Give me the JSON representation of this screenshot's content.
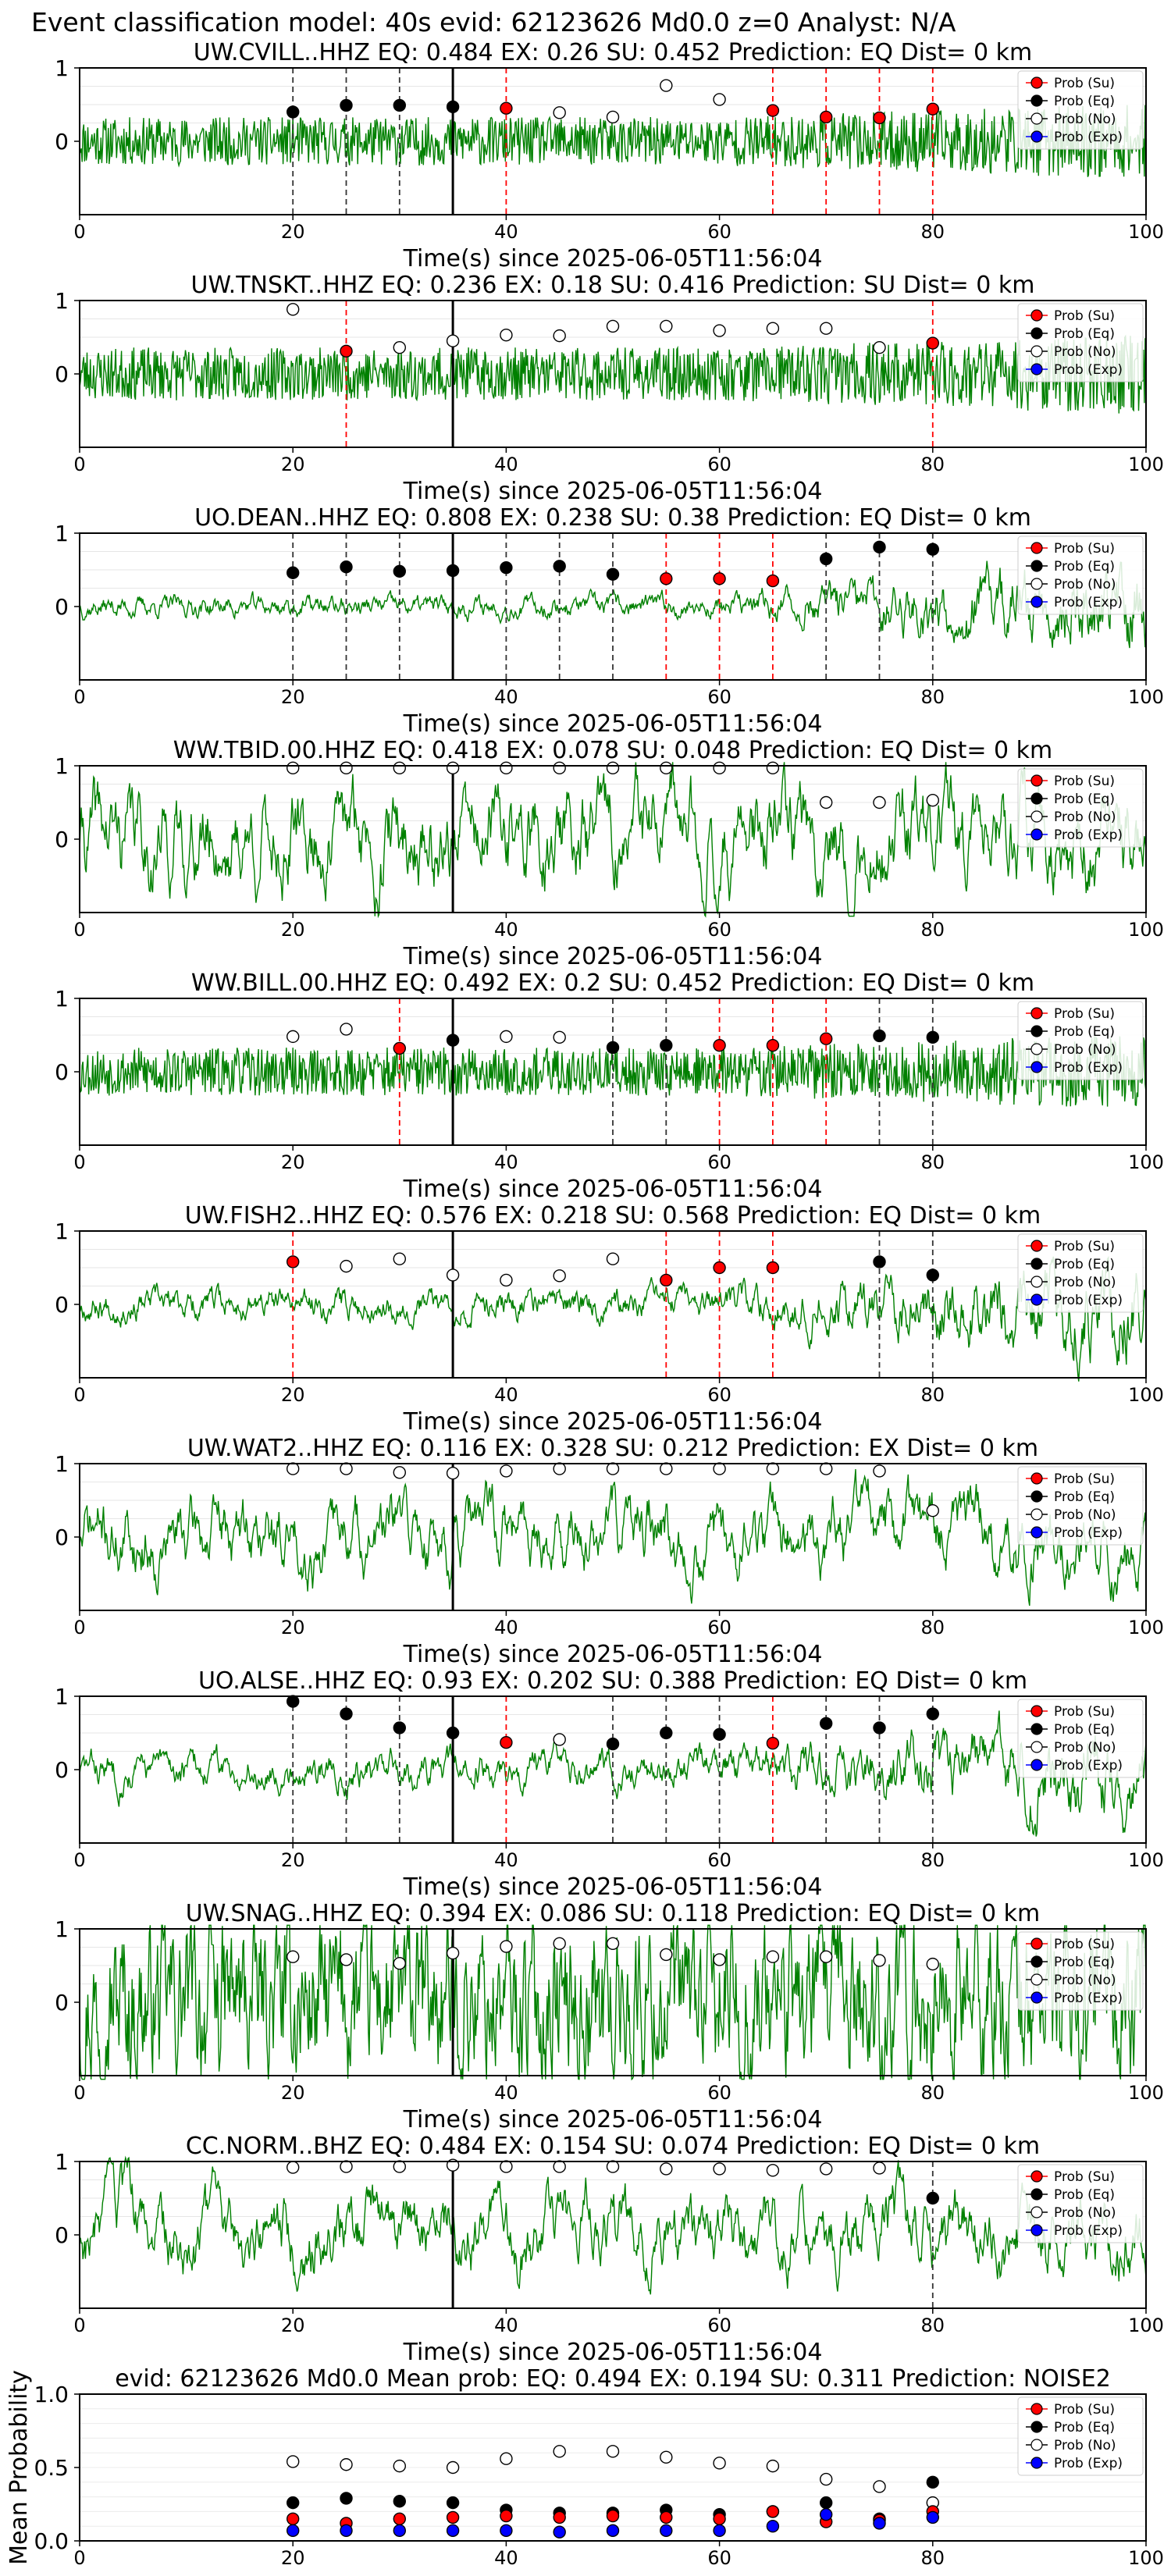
{
  "figure": {
    "suptitle": "Event classification model: 40s evid: 62123626 Md0.0 z=0 Analyst: N/A"
  },
  "legend_labels": [
    "Prob (Su)",
    "Prob (Eq)",
    "Prob (No)",
    "Prob (Exp)"
  ],
  "colors": {
    "su": "#ff0000",
    "eq": "#000000",
    "no": "#ffffff",
    "exp": "#0000ff",
    "waveform": "#008000"
  },
  "chart_data": [
    {
      "type": "line",
      "title": "UW.CVILL..HHZ   EQ: 0.484  EX: 0.26  SU: 0.452   Prediction: EQ    Dist= 0 km",
      "xlabel": "Time(s) since 2025-06-05T11:56:04",
      "xlim": [
        0,
        100
      ],
      "ylim": [
        -1,
        1
      ],
      "xticks": [
        0,
        20,
        40,
        60,
        80,
        100
      ],
      "yticks": [
        1,
        0
      ],
      "pick_time": 35,
      "amp": 0.55,
      "smooth": 0.05,
      "seed": 11,
      "grow": 1.5,
      "points": [
        {
          "t": 20,
          "p": 0.4,
          "c": "eq"
        },
        {
          "t": 25,
          "p": 0.49,
          "c": "eq"
        },
        {
          "t": 30,
          "p": 0.49,
          "c": "eq"
        },
        {
          "t": 35,
          "p": 0.47,
          "c": "eq"
        },
        {
          "t": 40,
          "p": 0.45,
          "c": "su"
        },
        {
          "t": 45,
          "p": 0.39,
          "c": "no"
        },
        {
          "t": 50,
          "p": 0.33,
          "c": "no"
        },
        {
          "t": 55,
          "p": 0.76,
          "c": "no"
        },
        {
          "t": 60,
          "p": 0.57,
          "c": "no"
        },
        {
          "t": 65,
          "p": 0.42,
          "c": "su"
        },
        {
          "t": 70,
          "p": 0.33,
          "c": "su"
        },
        {
          "t": 75,
          "p": 0.32,
          "c": "su"
        },
        {
          "t": 80,
          "p": 0.44,
          "c": "su"
        }
      ]
    },
    {
      "type": "line",
      "title": "UW.TNSKT..HHZ   EQ: 0.236  EX: 0.18  SU: 0.416   Prediction: SU    Dist= 0 km",
      "xlabel": "Time(s) since 2025-06-05T11:56:04",
      "xlim": [
        0,
        100
      ],
      "ylim": [
        -1,
        1
      ],
      "xticks": [
        0,
        20,
        40,
        60,
        80,
        100
      ],
      "yticks": [
        1,
        0
      ],
      "pick_time": 35,
      "amp": 0.6,
      "smooth": 0.05,
      "seed": 23,
      "grow": 1.5,
      "points": [
        {
          "t": 20,
          "p": 0.88,
          "c": "no"
        },
        {
          "t": 25,
          "p": 0.31,
          "c": "su"
        },
        {
          "t": 30,
          "p": 0.36,
          "c": "no"
        },
        {
          "t": 35,
          "p": 0.45,
          "c": "no"
        },
        {
          "t": 40,
          "p": 0.53,
          "c": "no"
        },
        {
          "t": 45,
          "p": 0.52,
          "c": "no"
        },
        {
          "t": 50,
          "p": 0.65,
          "c": "no"
        },
        {
          "t": 55,
          "p": 0.65,
          "c": "no"
        },
        {
          "t": 60,
          "p": 0.59,
          "c": "no"
        },
        {
          "t": 65,
          "p": 0.62,
          "c": "no"
        },
        {
          "t": 70,
          "p": 0.62,
          "c": "no"
        },
        {
          "t": 75,
          "p": 0.36,
          "c": "no"
        },
        {
          "t": 80,
          "p": 0.42,
          "c": "su"
        }
      ]
    },
    {
      "type": "line",
      "title": "UO.DEAN..HHZ   EQ: 0.808  EX: 0.238  SU: 0.38   Prediction: EQ    Dist= 0 km",
      "xlabel": "Time(s) since 2025-06-05T11:56:04",
      "xlim": [
        0,
        100
      ],
      "ylim": [
        -1,
        1
      ],
      "xticks": [
        0,
        20,
        40,
        60,
        80,
        100
      ],
      "yticks": [
        1,
        0
      ],
      "pick_time": 35,
      "amp": 0.12,
      "smooth": 0.2,
      "seed": 37,
      "grow": 4,
      "points": [
        {
          "t": 20,
          "p": 0.46,
          "c": "eq"
        },
        {
          "t": 25,
          "p": 0.54,
          "c": "eq"
        },
        {
          "t": 30,
          "p": 0.48,
          "c": "eq"
        },
        {
          "t": 35,
          "p": 0.49,
          "c": "eq"
        },
        {
          "t": 40,
          "p": 0.53,
          "c": "eq"
        },
        {
          "t": 45,
          "p": 0.55,
          "c": "eq"
        },
        {
          "t": 50,
          "p": 0.44,
          "c": "eq"
        },
        {
          "t": 55,
          "p": 0.38,
          "c": "su"
        },
        {
          "t": 60,
          "p": 0.38,
          "c": "su"
        },
        {
          "t": 65,
          "p": 0.35,
          "c": "su"
        },
        {
          "t": 70,
          "p": 0.65,
          "c": "eq"
        },
        {
          "t": 75,
          "p": 0.81,
          "c": "eq"
        },
        {
          "t": 80,
          "p": 0.78,
          "c": "eq"
        }
      ]
    },
    {
      "type": "line",
      "title": "WW.TBID.00.HHZ   EQ: 0.418  EX: 0.078  SU: 0.048   Prediction: EQ    Dist= 0 km",
      "xlabel": "Time(s) since 2025-06-05T11:56:04",
      "xlim": [
        0,
        100
      ],
      "ylim": [
        -1,
        1
      ],
      "xticks": [
        0,
        20,
        40,
        60,
        80,
        100
      ],
      "yticks": [
        1,
        0
      ],
      "pick_time": 35,
      "amp": 0.8,
      "smooth": 0.12,
      "seed": 41,
      "grow": 1,
      "points": [
        {
          "t": 20,
          "p": 0.97,
          "c": "no"
        },
        {
          "t": 25,
          "p": 0.97,
          "c": "no"
        },
        {
          "t": 30,
          "p": 0.97,
          "c": "no"
        },
        {
          "t": 35,
          "p": 0.97,
          "c": "no"
        },
        {
          "t": 40,
          "p": 0.97,
          "c": "no"
        },
        {
          "t": 45,
          "p": 0.97,
          "c": "no"
        },
        {
          "t": 50,
          "p": 0.97,
          "c": "no"
        },
        {
          "t": 55,
          "p": 0.97,
          "c": "no"
        },
        {
          "t": 60,
          "p": 0.97,
          "c": "no"
        },
        {
          "t": 65,
          "p": 0.97,
          "c": "no"
        },
        {
          "t": 70,
          "p": 0.5,
          "c": "no"
        },
        {
          "t": 75,
          "p": 0.5,
          "c": "no"
        },
        {
          "t": 80,
          "p": 0.53,
          "c": "no"
        }
      ]
    },
    {
      "type": "line",
      "title": "WW.BILL.00.HHZ   EQ: 0.492  EX: 0.2  SU: 0.452   Prediction: EQ    Dist= 0 km",
      "xlabel": "Time(s) since 2025-06-05T11:56:04",
      "xlim": [
        0,
        100
      ],
      "ylim": [
        -1,
        1
      ],
      "xticks": [
        0,
        20,
        40,
        60,
        80,
        100
      ],
      "yticks": [
        1,
        0
      ],
      "pick_time": 35,
      "amp": 0.55,
      "smooth": 0.06,
      "seed": 53,
      "grow": 1.5,
      "points": [
        {
          "t": 20,
          "p": 0.48,
          "c": "no"
        },
        {
          "t": 25,
          "p": 0.58,
          "c": "no"
        },
        {
          "t": 30,
          "p": 0.32,
          "c": "su"
        },
        {
          "t": 35,
          "p": 0.43,
          "c": "eq"
        },
        {
          "t": 40,
          "p": 0.48,
          "c": "no"
        },
        {
          "t": 45,
          "p": 0.47,
          "c": "no"
        },
        {
          "t": 50,
          "p": 0.33,
          "c": "eq"
        },
        {
          "t": 55,
          "p": 0.36,
          "c": "eq"
        },
        {
          "t": 60,
          "p": 0.36,
          "c": "su"
        },
        {
          "t": 65,
          "p": 0.36,
          "c": "su"
        },
        {
          "t": 70,
          "p": 0.45,
          "c": "su"
        },
        {
          "t": 75,
          "p": 0.49,
          "c": "eq"
        },
        {
          "t": 80,
          "p": 0.47,
          "c": "eq"
        }
      ]
    },
    {
      "type": "line",
      "title": "UW.FISH2..HHZ   EQ: 0.576  EX: 0.218  SU: 0.568   Prediction: EQ    Dist= 0 km",
      "xlabel": "Time(s) since 2025-06-05T11:56:04",
      "xlim": [
        0,
        100
      ],
      "ylim": [
        -1,
        1
      ],
      "xticks": [
        0,
        20,
        40,
        60,
        80,
        100
      ],
      "yticks": [
        1,
        0
      ],
      "pick_time": 35,
      "amp": 0.18,
      "smooth": 0.18,
      "seed": 67,
      "grow": 3,
      "points": [
        {
          "t": 20,
          "p": 0.58,
          "c": "su"
        },
        {
          "t": 25,
          "p": 0.52,
          "c": "no"
        },
        {
          "t": 30,
          "p": 0.62,
          "c": "no"
        },
        {
          "t": 35,
          "p": 0.4,
          "c": "no"
        },
        {
          "t": 40,
          "p": 0.33,
          "c": "no"
        },
        {
          "t": 45,
          "p": 0.39,
          "c": "no"
        },
        {
          "t": 50,
          "p": 0.62,
          "c": "no"
        },
        {
          "t": 55,
          "p": 0.33,
          "c": "su"
        },
        {
          "t": 60,
          "p": 0.5,
          "c": "su"
        },
        {
          "t": 65,
          "p": 0.5,
          "c": "su"
        },
        {
          "t": 75,
          "p": 0.58,
          "c": "eq"
        },
        {
          "t": 80,
          "p": 0.4,
          "c": "eq"
        }
      ]
    },
    {
      "type": "line",
      "title": "UW.WAT2..HHZ   EQ: 0.116  EX: 0.328  SU: 0.212   Prediction: EX    Dist= 0 km",
      "xlabel": "Time(s) since 2025-06-05T11:56:04",
      "xlim": [
        0,
        100
      ],
      "ylim": [
        -1,
        1
      ],
      "xticks": [
        0,
        20,
        40,
        60,
        80,
        100
      ],
      "yticks": [
        1,
        0
      ],
      "pick_time": 35,
      "amp": 0.7,
      "smooth": 0.1,
      "seed": 71,
      "grow": 1,
      "points": [
        {
          "t": 20,
          "p": 0.93,
          "c": "no"
        },
        {
          "t": 25,
          "p": 0.93,
          "c": "no"
        },
        {
          "t": 30,
          "p": 0.88,
          "c": "no"
        },
        {
          "t": 35,
          "p": 0.87,
          "c": "no"
        },
        {
          "t": 40,
          "p": 0.9,
          "c": "no"
        },
        {
          "t": 45,
          "p": 0.93,
          "c": "no"
        },
        {
          "t": 50,
          "p": 0.93,
          "c": "no"
        },
        {
          "t": 55,
          "p": 0.93,
          "c": "no"
        },
        {
          "t": 60,
          "p": 0.93,
          "c": "no"
        },
        {
          "t": 65,
          "p": 0.93,
          "c": "no"
        },
        {
          "t": 70,
          "p": 0.93,
          "c": "no"
        },
        {
          "t": 75,
          "p": 0.9,
          "c": "no"
        },
        {
          "t": 80,
          "p": 0.36,
          "c": "no"
        }
      ]
    },
    {
      "type": "line",
      "title": "UO.ALSE..HHZ   EQ: 0.93  EX: 0.202  SU: 0.388   Prediction: EQ    Dist= 0 km",
      "xlabel": "Time(s) since 2025-06-05T11:56:04",
      "xlim": [
        0,
        100
      ],
      "ylim": [
        -1,
        1
      ],
      "xticks": [
        0,
        20,
        40,
        60,
        80,
        100
      ],
      "yticks": [
        1,
        0
      ],
      "pick_time": 35,
      "amp": 0.25,
      "smooth": 0.15,
      "seed": 83,
      "grow": 2.5,
      "points": [
        {
          "t": 20,
          "p": 0.93,
          "c": "eq"
        },
        {
          "t": 25,
          "p": 0.76,
          "c": "eq"
        },
        {
          "t": 30,
          "p": 0.57,
          "c": "eq"
        },
        {
          "t": 35,
          "p": 0.5,
          "c": "eq"
        },
        {
          "t": 40,
          "p": 0.37,
          "c": "su"
        },
        {
          "t": 45,
          "p": 0.41,
          "c": "no"
        },
        {
          "t": 50,
          "p": 0.35,
          "c": "eq"
        },
        {
          "t": 55,
          "p": 0.5,
          "c": "eq"
        },
        {
          "t": 60,
          "p": 0.48,
          "c": "eq"
        },
        {
          "t": 65,
          "p": 0.36,
          "c": "su"
        },
        {
          "t": 70,
          "p": 0.63,
          "c": "eq"
        },
        {
          "t": 75,
          "p": 0.57,
          "c": "eq"
        },
        {
          "t": 80,
          "p": 0.76,
          "c": "eq"
        }
      ]
    },
    {
      "type": "line",
      "title": "UW.SNAG..HHZ   EQ: 0.394  EX: 0.086  SU: 0.118   Prediction: EQ    Dist= 0 km",
      "xlabel": "Time(s) since 2025-06-05T11:56:04",
      "xlim": [
        0,
        100
      ],
      "ylim": [
        -1,
        1
      ],
      "xticks": [
        0,
        20,
        40,
        60,
        80,
        100
      ],
      "yticks": [
        1,
        0
      ],
      "pick_time": 35,
      "amp": 0.65,
      "smooth": 0.35,
      "seed": 97,
      "grow": 1,
      "points": [
        {
          "t": 20,
          "p": 0.62,
          "c": "no"
        },
        {
          "t": 25,
          "p": 0.58,
          "c": "no"
        },
        {
          "t": 30,
          "p": 0.53,
          "c": "no"
        },
        {
          "t": 35,
          "p": 0.67,
          "c": "no"
        },
        {
          "t": 40,
          "p": 0.76,
          "c": "no"
        },
        {
          "t": 45,
          "p": 0.8,
          "c": "no"
        },
        {
          "t": 50,
          "p": 0.8,
          "c": "no"
        },
        {
          "t": 55,
          "p": 0.65,
          "c": "no"
        },
        {
          "t": 60,
          "p": 0.58,
          "c": "no"
        },
        {
          "t": 65,
          "p": 0.62,
          "c": "no"
        },
        {
          "t": 70,
          "p": 0.62,
          "c": "no"
        },
        {
          "t": 75,
          "p": 0.57,
          "c": "no"
        },
        {
          "t": 80,
          "p": 0.52,
          "c": "no"
        }
      ]
    },
    {
      "type": "line",
      "title": "CC.NORM..BHZ   EQ: 0.484  EX: 0.154  SU: 0.074   Prediction: EQ    Dist= 0 km",
      "xlabel": "Time(s) since 2025-06-05T11:56:04",
      "xlim": [
        0,
        100
      ],
      "ylim": [
        -1,
        1
      ],
      "xticks": [
        0,
        20,
        40,
        60,
        80,
        100
      ],
      "yticks": [
        1,
        0
      ],
      "pick_time": 35,
      "amp": 0.7,
      "smooth": 0.1,
      "seed": 103,
      "grow": 1,
      "points": [
        {
          "t": 20,
          "p": 0.92,
          "c": "no"
        },
        {
          "t": 25,
          "p": 0.93,
          "c": "no"
        },
        {
          "t": 30,
          "p": 0.93,
          "c": "no"
        },
        {
          "t": 35,
          "p": 0.95,
          "c": "no"
        },
        {
          "t": 40,
          "p": 0.93,
          "c": "no"
        },
        {
          "t": 45,
          "p": 0.93,
          "c": "no"
        },
        {
          "t": 50,
          "p": 0.93,
          "c": "no"
        },
        {
          "t": 55,
          "p": 0.9,
          "c": "no"
        },
        {
          "t": 60,
          "p": 0.9,
          "c": "no"
        },
        {
          "t": 65,
          "p": 0.88,
          "c": "no"
        },
        {
          "t": 70,
          "p": 0.9,
          "c": "no"
        },
        {
          "t": 75,
          "p": 0.91,
          "c": "no"
        },
        {
          "t": 80,
          "p": 0.5,
          "c": "eq"
        }
      ]
    },
    {
      "type": "scatter",
      "title": "evid: 62123626   Md0.0   Mean prob:   EQ: 0.494  EX: 0.194  SU: 0.311   Prediction: NOISE2",
      "ylabel": "Mean Probability",
      "xlim": [
        0,
        100
      ],
      "ylim": [
        0,
        1
      ],
      "xticks": [
        0,
        20,
        40,
        60,
        80,
        100
      ],
      "yticks": [
        0,
        0.5,
        1
      ],
      "ytick_labels": [
        "0.0",
        "0.5",
        "1.0"
      ],
      "x": [
        20,
        25,
        30,
        35,
        40,
        45,
        50,
        55,
        60,
        65,
        70,
        75,
        80
      ],
      "series": [
        {
          "name": "Prob (No)",
          "key": "no",
          "values": [
            0.54,
            0.52,
            0.51,
            0.5,
            0.56,
            0.61,
            0.61,
            0.57,
            0.53,
            0.51,
            0.42,
            0.37,
            0.26
          ]
        },
        {
          "name": "Prob (Eq)",
          "key": "eq",
          "values": [
            0.26,
            0.29,
            0.27,
            0.26,
            0.21,
            0.19,
            0.19,
            0.21,
            0.18,
            0.2,
            0.26,
            0.15,
            0.4
          ]
        },
        {
          "name": "Prob (Su)",
          "key": "su",
          "values": [
            0.15,
            0.12,
            0.15,
            0.16,
            0.17,
            0.16,
            0.17,
            0.16,
            0.15,
            0.2,
            0.13,
            0.14,
            0.2
          ]
        },
        {
          "name": "Prob (Exp)",
          "key": "exp",
          "values": [
            0.07,
            0.07,
            0.07,
            0.07,
            0.07,
            0.06,
            0.07,
            0.07,
            0.07,
            0.1,
            0.18,
            0.12,
            0.16
          ]
        }
      ]
    }
  ]
}
